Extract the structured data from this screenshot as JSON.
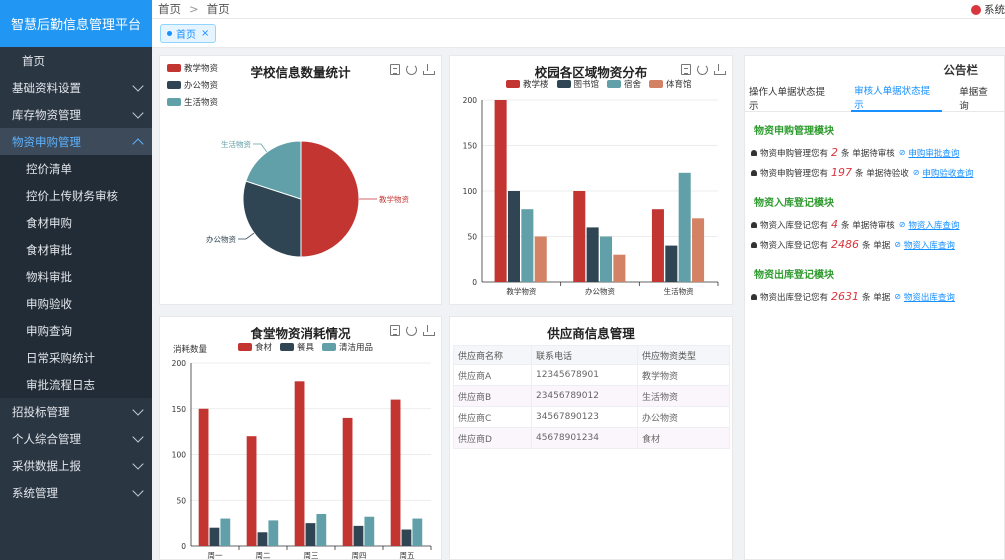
{
  "app": {
    "title": "智慧后勤信息管理平台"
  },
  "sidebar": {
    "items": [
      {
        "label": "首页",
        "type": "top"
      },
      {
        "label": "基础资料设置",
        "type": "group"
      },
      {
        "label": "库存物资管理",
        "type": "group"
      },
      {
        "label": "物资申购管理",
        "type": "group-open"
      },
      {
        "label": "控价清单",
        "type": "sub"
      },
      {
        "label": "控价上传财务审核",
        "type": "sub"
      },
      {
        "label": "食材申购",
        "type": "sub"
      },
      {
        "label": "食材审批",
        "type": "sub"
      },
      {
        "label": "物料审批",
        "type": "sub"
      },
      {
        "label": "申购验收",
        "type": "sub"
      },
      {
        "label": "申购查询",
        "type": "sub"
      },
      {
        "label": "日常采购统计",
        "type": "sub"
      },
      {
        "label": "审批流程日志",
        "type": "sub"
      },
      {
        "label": "招投标管理",
        "type": "group"
      },
      {
        "label": "个人综合管理",
        "type": "group"
      },
      {
        "label": "采供数据上报",
        "type": "group"
      },
      {
        "label": "系统管理",
        "type": "group"
      }
    ]
  },
  "header": {
    "breadcrumb": [
      "首页",
      "首页"
    ],
    "user": "系统"
  },
  "tabs": {
    "home": "首页",
    "close": "×"
  },
  "colors": {
    "red": "#c23531",
    "navy": "#2f4554",
    "teal": "#61a0a8",
    "orange": "#d48265",
    "accent": "#1890ff"
  },
  "charts": {
    "school": {
      "title": "学校信息数量统计",
      "chart_data": {
        "type": "pie",
        "title": "学校信息数量统计",
        "labels": [
          "教学物资",
          "办公物资",
          "生活物资"
        ],
        "values": [
          50,
          30,
          20
        ],
        "legend": "top-left"
      }
    },
    "campus": {
      "title": "校园各区域物资分布",
      "chart_data": {
        "type": "bar",
        "title": "校园各区域物资分布",
        "categories": [
          "教学物资",
          "办公物资",
          "生活物资"
        ],
        "series": [
          {
            "name": "教学楼",
            "values": [
              200,
              100,
              80
            ]
          },
          {
            "name": "图书馆",
            "values": [
              100,
              60,
              40
            ]
          },
          {
            "name": "宿舍",
            "values": [
              80,
              50,
              120
            ]
          },
          {
            "name": "体育馆",
            "values": [
              50,
              30,
              70
            ]
          }
        ],
        "ylim": [
          0,
          200
        ],
        "yticks": [
          0,
          50,
          100,
          150,
          200
        ],
        "legend": "top"
      }
    },
    "canteen": {
      "title": "食堂物资消耗情况",
      "chart_data": {
        "type": "bar",
        "title": "食堂物资消耗情况",
        "ylabel": "消耗数量",
        "categories": [
          "周一",
          "周二",
          "周三",
          "周四",
          "周五"
        ],
        "series": [
          {
            "name": "食材",
            "values": [
              150,
              120,
              180,
              140,
              160
            ]
          },
          {
            "name": "餐具",
            "values": [
              20,
              15,
              25,
              22,
              18
            ]
          },
          {
            "name": "清洁用品",
            "values": [
              30,
              28,
              35,
              32,
              30
            ]
          }
        ],
        "ylim": [
          0,
          200
        ],
        "yticks": [
          0,
          50,
          100,
          150,
          200
        ],
        "legend": "top"
      }
    }
  },
  "supplier": {
    "title": "供应商信息管理",
    "columns": [
      "供应商名称",
      "联系电话",
      "供应物资类型"
    ],
    "rows": [
      [
        "供应商A",
        "12345678901",
        "教学物资"
      ],
      [
        "供应商B",
        "23456789012",
        "生活物资"
      ],
      [
        "供应商C",
        "34567890123",
        "办公物资"
      ],
      [
        "供应商D",
        "45678901234",
        "食材"
      ]
    ]
  },
  "notice": {
    "title": "公告栏",
    "tabs": [
      "操作人单据状态提示",
      "审核人单据状态提示",
      "单据查询"
    ],
    "active_tab": 1,
    "modules": [
      {
        "title": "物资申购管理模块",
        "lines": [
          {
            "pre": "物资申购管理您有",
            "num": "2",
            "post": "条 单据待审核",
            "link": "申购审批查询"
          },
          {
            "pre": "物资申购管理您有",
            "num": "197",
            "post": "条 单据待验收",
            "link": "申购验收查询"
          }
        ]
      },
      {
        "title": "物资入库登记模块",
        "lines": [
          {
            "pre": "物资入库登记您有",
            "num": "4",
            "post": "条 单据待审核",
            "link": "物资入库查询"
          },
          {
            "pre": "物资入库登记您有",
            "num": "2486",
            "post": "条 单据",
            "link": "物资入库查询"
          }
        ]
      },
      {
        "title": "物资出库登记模块",
        "lines": [
          {
            "pre": "物资出库登记您有",
            "num": "2631",
            "post": "条 单据",
            "link": "物资出库查询"
          }
        ]
      }
    ]
  }
}
